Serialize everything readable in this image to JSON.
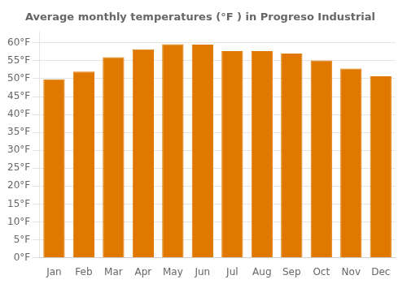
{
  "chart_data": {
    "type": "bar",
    "title": "Average monthly temperatures (°F ) in Progreso Industrial",
    "categories": [
      "Jan",
      "Feb",
      "Mar",
      "Apr",
      "May",
      "Jun",
      "Jul",
      "Aug",
      "Sep",
      "Oct",
      "Nov",
      "Dec"
    ],
    "values": [
      49.8,
      52.0,
      56.0,
      58.2,
      59.6,
      59.5,
      57.7,
      57.7,
      57.0,
      55.1,
      52.8,
      50.7
    ],
    "color": "#E07800",
    "ylim": [
      0,
      63
    ],
    "yticks": [
      {
        "value": 0,
        "label": "0°F"
      },
      {
        "value": 5,
        "label": "5°F"
      },
      {
        "value": 10,
        "label": "10°F"
      },
      {
        "value": 15,
        "label": "15°F"
      },
      {
        "value": 20,
        "label": "20°F"
      },
      {
        "value": 25,
        "label": "25°F"
      },
      {
        "value": 30,
        "label": "30°F"
      },
      {
        "value": 35,
        "label": "35°F"
      },
      {
        "value": 40,
        "label": "40°F"
      },
      {
        "value": 45,
        "label": "45°F"
      },
      {
        "value": 50,
        "label": "50°F"
      },
      {
        "value": 55,
        "label": "55°F"
      },
      {
        "value": 60,
        "label": "60°F"
      }
    ],
    "grid": true
  }
}
